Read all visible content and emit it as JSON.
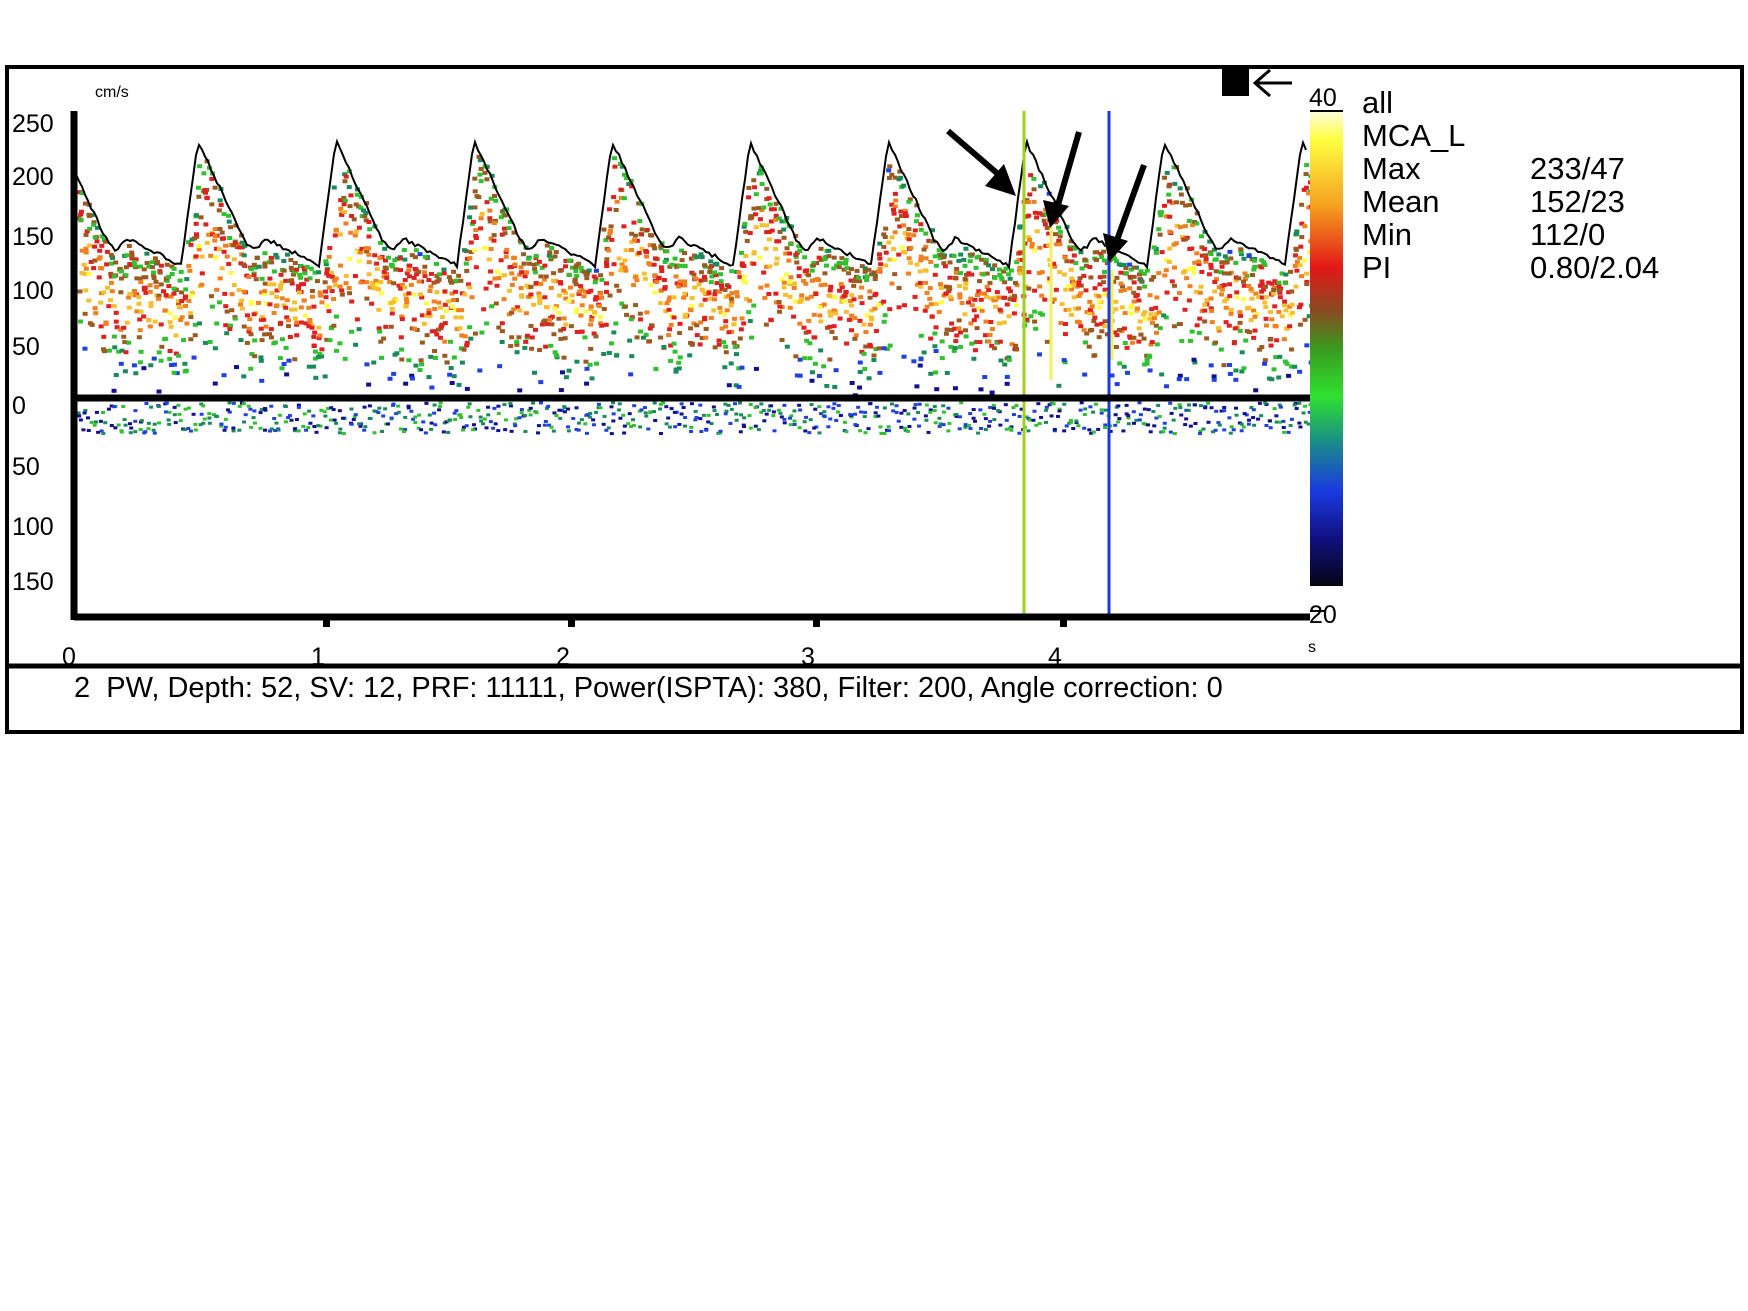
{
  "plot": {
    "y_unit": "cm/s",
    "y_labels": [
      "250",
      "200",
      "150",
      "100",
      "50",
      "0",
      "50",
      "100",
      "150"
    ],
    "x_labels": [
      "0",
      "1",
      "2",
      "3",
      "4"
    ],
    "x_unit": "s"
  },
  "colorbar": {
    "top": "40",
    "bottom": "20"
  },
  "info": {
    "lines": [
      "all",
      "MCA_L"
    ],
    "stats": [
      [
        "Max",
        "233/47"
      ],
      [
        "Mean",
        "152/23"
      ],
      [
        "Min",
        "112/0"
      ],
      [
        "PI",
        "0.80/2.04"
      ]
    ]
  },
  "footer": "2  PW, Depth: 52, SV: 12, PRF: 11111, Power(ISPTA): 380, Filter: 200, Angle correction: 0"
}
